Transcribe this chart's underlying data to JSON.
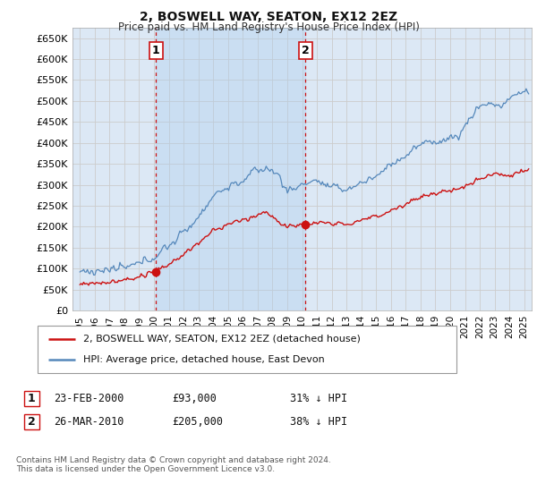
{
  "title": "2, BOSWELL WAY, SEATON, EX12 2EZ",
  "subtitle": "Price paid vs. HM Land Registry's House Price Index (HPI)",
  "ylabel_vals": [
    0,
    50000,
    100000,
    150000,
    200000,
    250000,
    300000,
    350000,
    400000,
    450000,
    500000,
    550000,
    600000,
    650000
  ],
  "ylim": [
    0,
    675000
  ],
  "xlim_start": 1994.5,
  "xlim_end": 2025.5,
  "hpi_color": "#5588bb",
  "price_color": "#cc1111",
  "vline_color": "#cc1111",
  "grid_color": "#cccccc",
  "bg_color": "#dce8f5",
  "shade_color": "#c0d8f0",
  "legend_label_red": "2, BOSWELL WAY, SEATON, EX12 2EZ (detached house)",
  "legend_label_blue": "HPI: Average price, detached house, East Devon",
  "transaction1_label": "1",
  "transaction1_date": "23-FEB-2000",
  "transaction1_price": "£93,000",
  "transaction1_pct": "31% ↓ HPI",
  "transaction1_x": 2000.13,
  "transaction1_y": 93000,
  "transaction2_label": "2",
  "transaction2_date": "26-MAR-2010",
  "transaction2_price": "£205,000",
  "transaction2_pct": "38% ↓ HPI",
  "transaction2_x": 2010.23,
  "transaction2_y": 205000,
  "footnote": "Contains HM Land Registry data © Crown copyright and database right 2024.\nThis data is licensed under the Open Government Licence v3.0."
}
